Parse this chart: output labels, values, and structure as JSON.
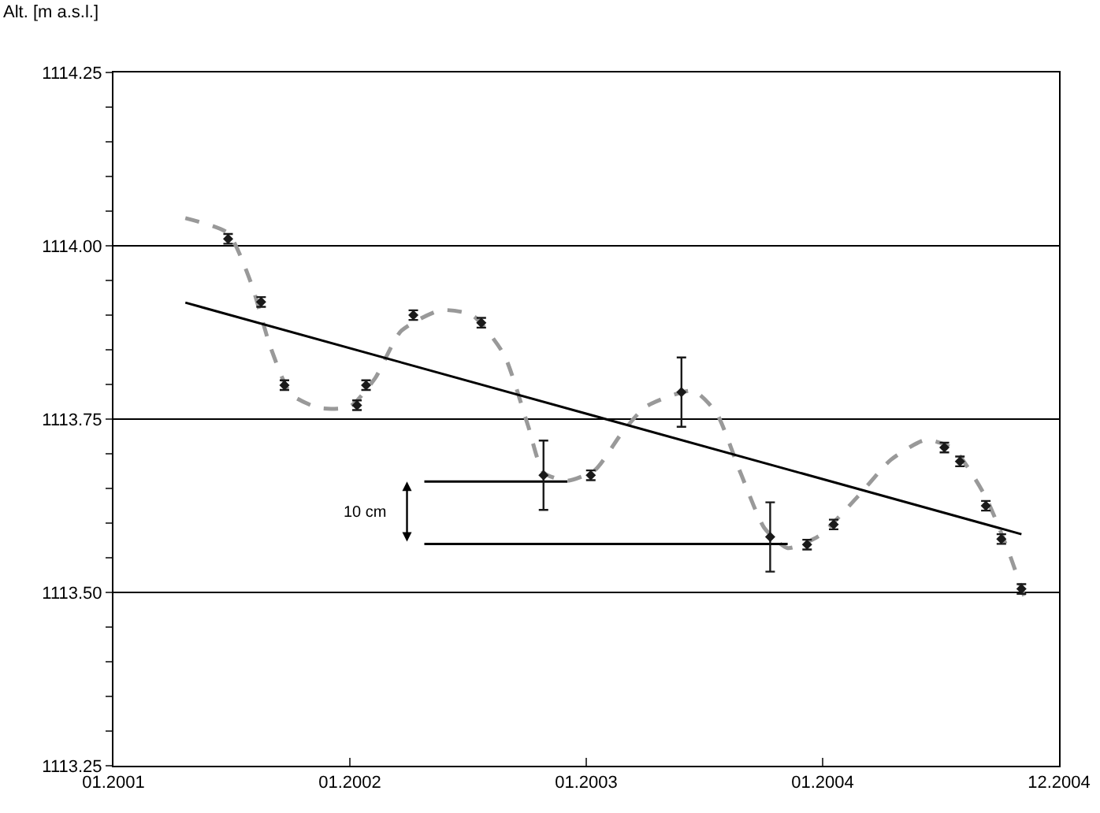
{
  "chart_data": {
    "type": "scatter",
    "ylabel": "Alt. [m a.s.l.]",
    "xlim": [
      "2001-01-01",
      "2004-12-31"
    ],
    "xticks": [
      {
        "value": "2001-01-01",
        "label": "01.2001"
      },
      {
        "value": "2002-01-01",
        "label": "01.2002"
      },
      {
        "value": "2003-01-01",
        "label": "01.2003"
      },
      {
        "value": "2004-01-01",
        "label": "01.2004"
      },
      {
        "value": "2004-12-31",
        "label": "12.2004"
      }
    ],
    "ylim": [
      1113.25,
      1114.25
    ],
    "yticks": [
      {
        "value": 1113.25,
        "label": "1113.25"
      },
      {
        "value": 1113.3,
        "label": null
      },
      {
        "value": 1113.35,
        "label": null
      },
      {
        "value": 1113.4,
        "label": null
      },
      {
        "value": 1113.45,
        "label": null
      },
      {
        "value": 1113.5,
        "label": "1113.50"
      },
      {
        "value": 1113.55,
        "label": null
      },
      {
        "value": 1113.6,
        "label": null
      },
      {
        "value": 1113.65,
        "label": null
      },
      {
        "value": 1113.7,
        "label": null
      },
      {
        "value": 1113.75,
        "label": "1113.75"
      },
      {
        "value": 1113.8,
        "label": null
      },
      {
        "value": 1113.85,
        "label": null
      },
      {
        "value": 1113.9,
        "label": null
      },
      {
        "value": 1113.95,
        "label": null
      },
      {
        "value": 1114.0,
        "label": "1114.00"
      },
      {
        "value": 1114.05,
        "label": null
      },
      {
        "value": 1114.1,
        "label": null
      },
      {
        "value": 1114.15,
        "label": null
      },
      {
        "value": 1114.2,
        "label": null
      },
      {
        "value": 1114.25,
        "label": "1114.25"
      }
    ],
    "grid": "y",
    "annotations": [
      "10 cm"
    ],
    "series": [
      {
        "type": "line",
        "color": "#999999",
        "line_style": "dashed",
        "marker": "none",
        "x": [
          "2001-04-22",
          "2001-06-27",
          "2001-08-02",
          "2001-08-31",
          "2001-10-02",
          "2001-11-15",
          "2002-01-01",
          "2002-02-09",
          "2002-03-21",
          "2002-05-21",
          "2002-07-09",
          "2002-08-27",
          "2002-10-03",
          "2002-10-27",
          "2002-12-03",
          "2003-01-15",
          "2003-02-25",
          "2003-04-03",
          "2003-06-15",
          "2003-07-21",
          "2003-08-27",
          "2003-10-03",
          "2003-11-08",
          "2003-12-27",
          "2004-02-25",
          "2004-04-15",
          "2004-06-08",
          "2004-07-21",
          "2004-09-08",
          "2004-10-14",
          "2004-11-07"
        ],
        "values": [
          1114.04,
          1114.018,
          1113.945,
          1113.855,
          1113.786,
          1113.766,
          1113.768,
          1113.809,
          1113.877,
          1113.907,
          1113.9,
          1113.843,
          1113.741,
          1113.673,
          1113.661,
          1113.677,
          1113.73,
          1113.768,
          1113.791,
          1113.759,
          1113.673,
          1113.593,
          1113.564,
          1113.582,
          1113.639,
          1113.691,
          1113.72,
          1113.707,
          1113.639,
          1113.559,
          1113.495
        ]
      },
      {
        "type": "line",
        "color": "#000000",
        "line_style": "solid",
        "marker": "none",
        "x": [
          "2001-04-22",
          "2004-11-03"
        ],
        "values": [
          1113.918,
          1113.584
        ]
      },
      {
        "type": "line",
        "color": "#000000",
        "line_style": "solid",
        "marker": "none",
        "x": [
          "2002-04-26",
          "2002-12-03"
        ],
        "values": [
          1113.66,
          1113.66
        ]
      },
      {
        "type": "line",
        "color": "#000000",
        "line_style": "solid",
        "marker": "none",
        "x": [
          "2002-04-26",
          "2003-11-08"
        ],
        "values": [
          1113.57,
          1113.57
        ]
      },
      {
        "type": "scatter",
        "color": "#1a1a1a",
        "marker": "diamond",
        "x": [
          "2001-06-27",
          "2001-08-17",
          "2001-09-22",
          "2002-01-12",
          "2002-01-26",
          "2002-04-09",
          "2002-07-23",
          "2002-10-27",
          "2003-01-08",
          "2003-05-28",
          "2003-10-12",
          "2003-12-08",
          "2004-01-18",
          "2004-07-07",
          "2004-07-31",
          "2004-09-09",
          "2004-10-03",
          "2004-11-03"
        ],
        "values": [
          1114.01,
          1113.919,
          1113.799,
          1113.77,
          1113.799,
          1113.9,
          1113.889,
          1113.669,
          1113.669,
          1113.789,
          1113.58,
          1113.569,
          1113.598,
          1113.709,
          1113.689,
          1113.625,
          1113.577,
          1113.505
        ],
        "errors": [
          0.007,
          0.007,
          0.007,
          0.007,
          0.007,
          0.007,
          0.007,
          0.05,
          0.007,
          0.05,
          0.05,
          0.007,
          0.007,
          0.007,
          0.007,
          0.007,
          0.007,
          0.007
        ]
      }
    ]
  }
}
